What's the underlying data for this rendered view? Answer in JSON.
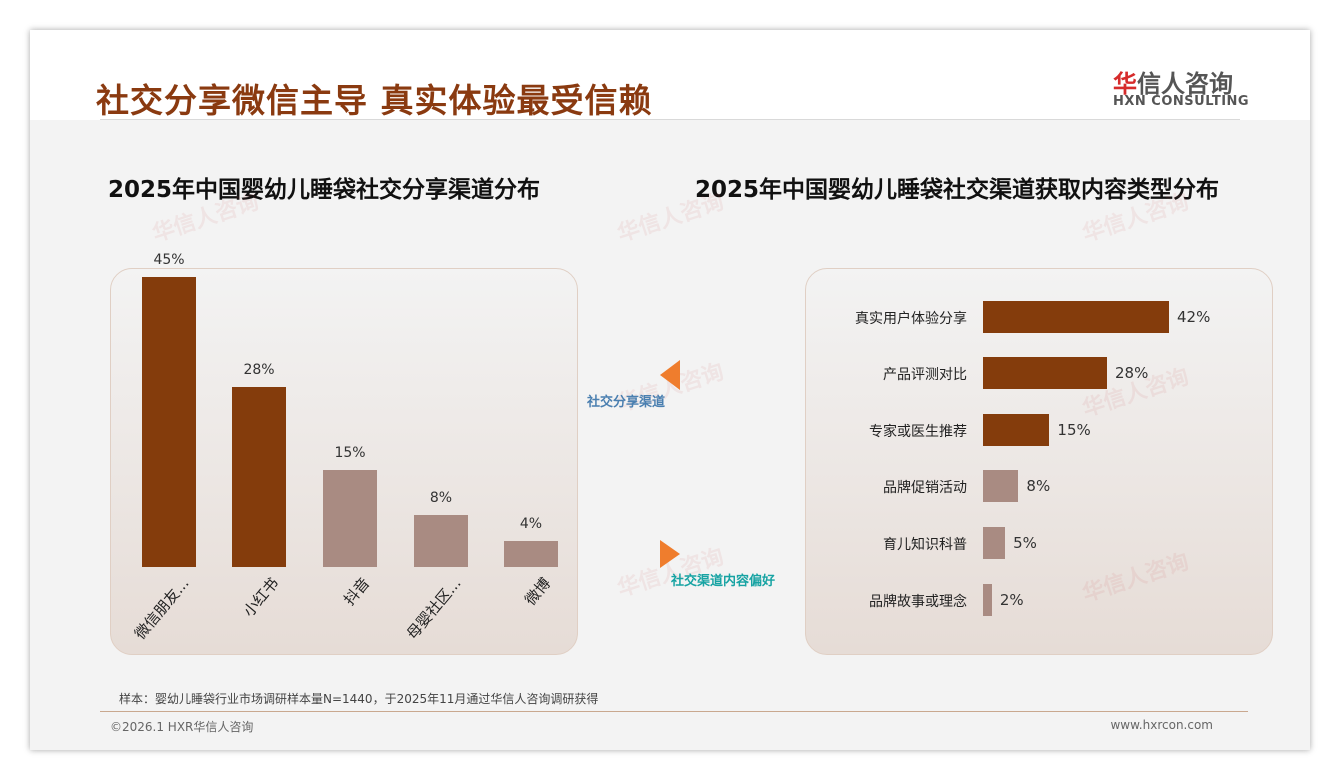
{
  "header": {
    "title": "社交分享微信主导 真实体验最受信赖",
    "logo_cn_red": "华",
    "logo_cn": "信人咨询",
    "logo_en": "HXN CONSULTING"
  },
  "watermark": "华信人咨询",
  "middle": {
    "left_label": "社交分享渠道",
    "right_label": "社交渠道内容偏好",
    "left_color": "#4a7fb0",
    "right_color": "#17a3a3",
    "arrow_color": "#ef7d2d"
  },
  "footer": {
    "note": "样本：婴幼儿睡袋行业市场调研样本量N=1440，于2025年11月通过华信人咨询调研获得",
    "copyright": "©2026.1 HXR华信人咨询",
    "url": "www.hxrcon.com"
  },
  "colors": {
    "dark": "#843c0c",
    "light": "#a98b82"
  },
  "chart_data": [
    {
      "type": "bar",
      "title": "2025年中国婴幼儿睡袋社交分享渠道分布",
      "categories": [
        "微信朋友...",
        "小红书",
        "抖音",
        "母婴社区...",
        "微博"
      ],
      "values": [
        45,
        28,
        15,
        8,
        4
      ],
      "value_labels": [
        "45%",
        "28%",
        "15%",
        "8%",
        "4%"
      ],
      "highlight": [
        true,
        true,
        false,
        false,
        false
      ],
      "xlabel": "",
      "ylabel": "",
      "ylim": [
        0,
        45
      ]
    },
    {
      "type": "bar",
      "orientation": "horizontal",
      "title": "2025年中国婴幼儿睡袋社交渠道获取内容类型分布",
      "categories": [
        "真实用户体验分享",
        "产品评测对比",
        "专家或医生推荐",
        "品牌促销活动",
        "育儿知识科普",
        "品牌故事或理念"
      ],
      "values": [
        42,
        28,
        15,
        8,
        5,
        2
      ],
      "value_labels": [
        "42%",
        "28%",
        "15%",
        "8%",
        "5%",
        "2%"
      ],
      "highlight": [
        true,
        true,
        true,
        false,
        false,
        false
      ],
      "xlabel": "",
      "ylabel": "",
      "xlim": [
        0,
        42
      ]
    }
  ]
}
